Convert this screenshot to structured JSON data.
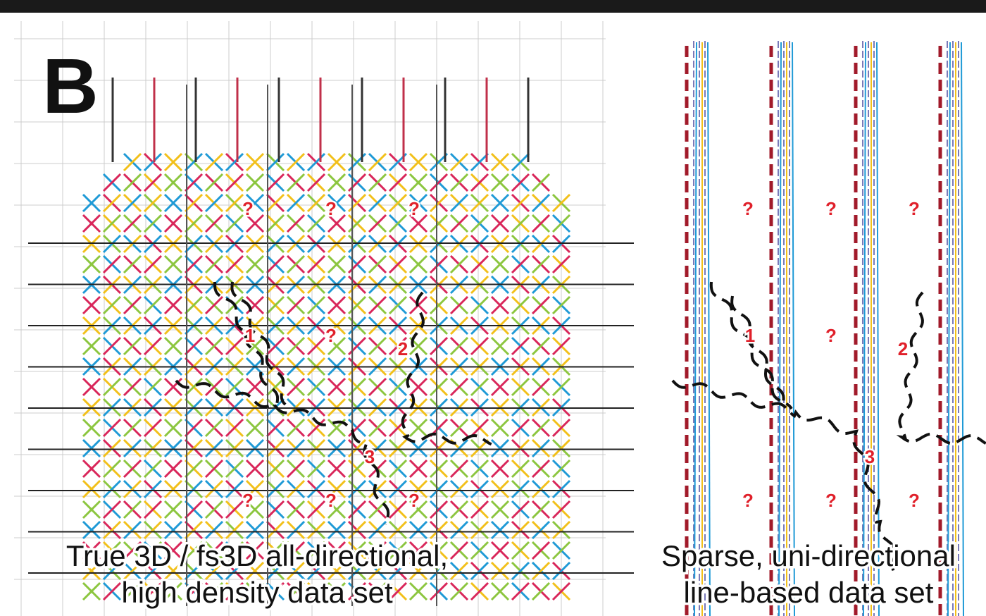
{
  "panel_label": "B",
  "left": {
    "markers": [
      "?",
      "?",
      "?",
      "?",
      "?",
      "?",
      "?",
      "1",
      "2",
      "3"
    ],
    "caption": [
      "True 3D / fs3D all-directional,",
      "high density data set"
    ]
  },
  "right": {
    "markers": [
      "?",
      "?",
      "?",
      "?",
      "?",
      "?",
      "?",
      "1",
      "2",
      "3"
    ],
    "caption": [
      "Sparse, uni-directional",
      "line-based data set"
    ]
  }
}
